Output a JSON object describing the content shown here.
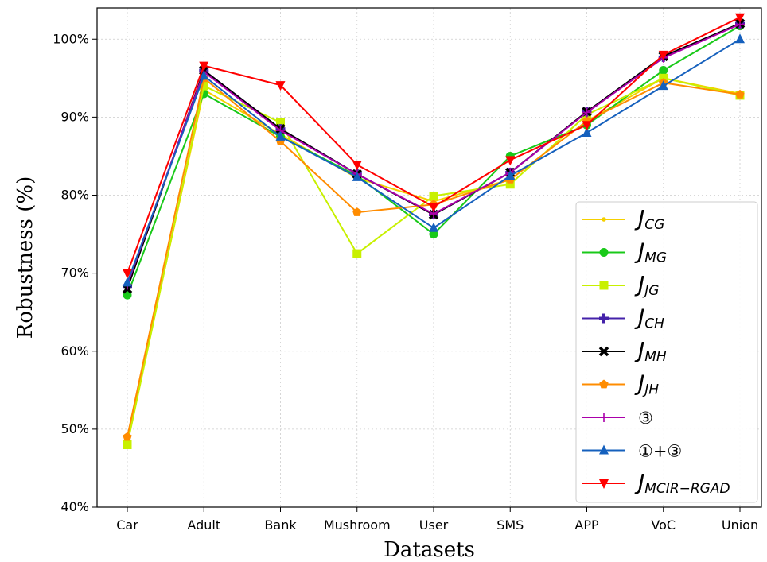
{
  "chart_data": {
    "type": "line",
    "xlabel": "Datasets",
    "ylabel": "Robustness (%)",
    "categories": [
      "Car",
      "Adult",
      "Bank",
      "Mushroom",
      "User",
      "SMS",
      "APP",
      "VoC",
      "Union"
    ],
    "yticks": [
      "40%",
      "50%",
      "60%",
      "70%",
      "80%",
      "90%",
      "100%"
    ],
    "ylim": [
      40,
      104
    ],
    "grid": true,
    "legend_position": "lower-right",
    "series": [
      {
        "name": "J",
        "sub": "CG",
        "color": "#f5d000",
        "marker": "dot",
        "values": [
          48.5,
          93.5,
          87.8,
          82.2,
          79.2,
          82.0,
          89.5,
          95.0,
          93.0
        ]
      },
      {
        "name": "J",
        "sub": "MG",
        "color": "#19c919",
        "marker": "circle",
        "values": [
          67.2,
          93.0,
          87.5,
          82.5,
          75.0,
          85.0,
          89.0,
          96.0,
          101.7
        ]
      },
      {
        "name": "J",
        "sub": "JG",
        "color": "#c8f000",
        "marker": "square",
        "values": [
          48.0,
          94.0,
          89.3,
          72.5,
          79.9,
          81.4,
          90.3,
          95.0,
          92.8
        ]
      },
      {
        "name": "J",
        "sub": "CH",
        "color": "#4422aa",
        "marker": "plus",
        "values": [
          68.3,
          96.0,
          88.5,
          82.7,
          77.5,
          82.9,
          90.7,
          97.7,
          102.0
        ]
      },
      {
        "name": "J",
        "sub": "MH",
        "color": "#000000",
        "marker": "x",
        "values": [
          68.0,
          96.0,
          88.5,
          82.7,
          77.5,
          82.9,
          90.7,
          97.8,
          102.0
        ]
      },
      {
        "name": "J",
        "sub": "JH",
        "color": "#ff8c00",
        "marker": "pentagon",
        "values": [
          49.0,
          95.0,
          86.9,
          77.8,
          78.8,
          82.0,
          89.5,
          94.4,
          92.9
        ]
      },
      {
        "name": "③",
        "sub": "",
        "color": "#aa00aa",
        "marker": "cross",
        "values": [
          68.5,
          95.8,
          88.3,
          82.7,
          77.6,
          82.9,
          90.6,
          97.6,
          101.9
        ]
      },
      {
        "name": "①+③",
        "sub": "",
        "color": "#1560bd",
        "marker": "triangle-up",
        "values": [
          68.8,
          95.3,
          87.5,
          82.3,
          75.8,
          82.5,
          88.0,
          94.0,
          100.0
        ]
      },
      {
        "name": "J",
        "sub": "MCIR−RGAD",
        "color": "#ff0000",
        "marker": "triangle-down",
        "values": [
          70.0,
          96.6,
          94.1,
          83.9,
          78.5,
          84.5,
          89.0,
          98.0,
          102.8
        ]
      }
    ]
  }
}
